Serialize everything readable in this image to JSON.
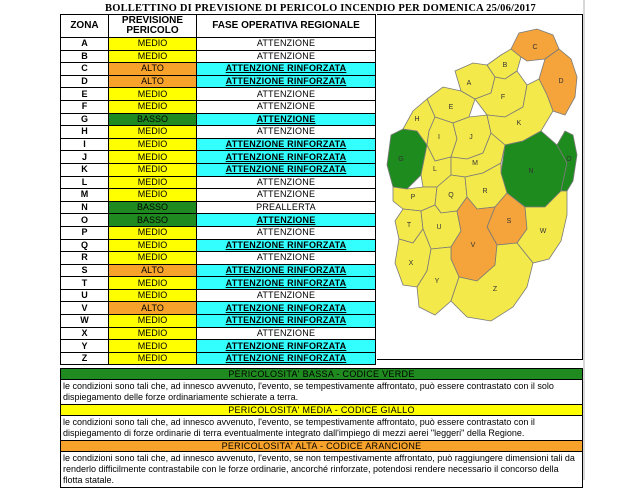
{
  "title": "BOLLETTINO DI PREVISIONE DI PERICOLO INCENDIO PER DOMENICA 25/06/2017",
  "colors": {
    "green": "#1f8a1f",
    "yellow": "#ffff00",
    "orange": "#f7a22a",
    "cyan": "#33ffff",
    "white": "#ffffff",
    "map_yellow": "#f4e94a",
    "map_orange": "#f4a43a",
    "map_green": "#1e8b1e"
  },
  "table": {
    "headers": {
      "zona": "ZONA",
      "previsione": "PREVISIONE PERICOLO",
      "fase": "FASE OPERATIVA REGIONALE"
    },
    "rows": [
      {
        "zona": "A",
        "prev": "MEDIO",
        "fase": "ATTENZIONE"
      },
      {
        "zona": "B",
        "prev": "MEDIO",
        "fase": "ATTENZIONE"
      },
      {
        "zona": "C",
        "prev": "ALTO",
        "fase": "ATTENZIONE RINFORZATA"
      },
      {
        "zona": "D",
        "prev": "ALTO",
        "fase": "ATTENZIONE RINFORZATA"
      },
      {
        "zona": "E",
        "prev": "MEDIO",
        "fase": "ATTENZIONE"
      },
      {
        "zona": "F",
        "prev": "MEDIO",
        "fase": "ATTENZIONE"
      },
      {
        "zona": "G",
        "prev": "BASSO",
        "fase": "ATTENZIONE"
      },
      {
        "zona": "H",
        "prev": "MEDIO",
        "fase": "ATTENZIONE"
      },
      {
        "zona": "I",
        "prev": "MEDIO",
        "fase": "ATTENZIONE RINFORZATA"
      },
      {
        "zona": "J",
        "prev": "MEDIO",
        "fase": "ATTENZIONE RINFORZATA"
      },
      {
        "zona": "K",
        "prev": "MEDIO",
        "fase": "ATTENZIONE RINFORZATA"
      },
      {
        "zona": "L",
        "prev": "MEDIO",
        "fase": "ATTENZIONE"
      },
      {
        "zona": "M",
        "prev": "MEDIO",
        "fase": "ATTENZIONE"
      },
      {
        "zona": "N",
        "prev": "BASSO",
        "fase": "PREALLERTA"
      },
      {
        "zona": "O",
        "prev": "BASSO",
        "fase": "ATTENZIONE"
      },
      {
        "zona": "P",
        "prev": "MEDIO",
        "fase": "ATTENZIONE"
      },
      {
        "zona": "Q",
        "prev": "MEDIO",
        "fase": "ATTENZIONE RINFORZATA"
      },
      {
        "zona": "R",
        "prev": "MEDIO",
        "fase": "ATTENZIONE"
      },
      {
        "zona": "S",
        "prev": "ALTO",
        "fase": "ATTENZIONE RINFORZATA"
      },
      {
        "zona": "T",
        "prev": "MEDIO",
        "fase": "ATTENZIONE RINFORZATA"
      },
      {
        "zona": "U",
        "prev": "MEDIO",
        "fase": "ATTENZIONE"
      },
      {
        "zona": "V",
        "prev": "ALTO",
        "fase": "ATTENZIONE RINFORZATA"
      },
      {
        "zona": "W",
        "prev": "MEDIO",
        "fase": "ATTENZIONE RINFORZATA"
      },
      {
        "zona": "X",
        "prev": "MEDIO",
        "fase": "ATTENZIONE"
      },
      {
        "zona": "Y",
        "prev": "MEDIO",
        "fase": "ATTENZIONE RINFORZATA"
      },
      {
        "zona": "Z",
        "prev": "MEDIO",
        "fase": "ATTENZIONE RINFORZATA"
      }
    ]
  },
  "map": {
    "zones": [
      {
        "label": "A",
        "level": "MEDIO"
      },
      {
        "label": "B",
        "level": "MEDIO"
      },
      {
        "label": "C",
        "level": "ALTO"
      },
      {
        "label": "D",
        "level": "ALTO"
      },
      {
        "label": "E",
        "level": "MEDIO"
      },
      {
        "label": "F",
        "level": "MEDIO"
      },
      {
        "label": "G",
        "level": "BASSO"
      },
      {
        "label": "H",
        "level": "MEDIO"
      },
      {
        "label": "I",
        "level": "MEDIO"
      },
      {
        "label": "J",
        "level": "MEDIO"
      },
      {
        "label": "K",
        "level": "MEDIO"
      },
      {
        "label": "L",
        "level": "MEDIO"
      },
      {
        "label": "M",
        "level": "MEDIO"
      },
      {
        "label": "N",
        "level": "BASSO"
      },
      {
        "label": "O",
        "level": "BASSO"
      },
      {
        "label": "P",
        "level": "MEDIO"
      },
      {
        "label": "Q",
        "level": "MEDIO"
      },
      {
        "label": "R",
        "level": "MEDIO"
      },
      {
        "label": "S",
        "level": "ALTO"
      },
      {
        "label": "T",
        "level": "MEDIO"
      },
      {
        "label": "U",
        "level": "MEDIO"
      },
      {
        "label": "V",
        "level": "ALTO"
      },
      {
        "label": "W",
        "level": "MEDIO"
      },
      {
        "label": "X",
        "level": "MEDIO"
      },
      {
        "label": "Y",
        "level": "MEDIO"
      },
      {
        "label": "Z",
        "level": "MEDIO"
      }
    ]
  },
  "legend": {
    "basso": {
      "head": "PERICOLOSITA' BASSA - CODICE VERDE",
      "text": "le condizioni sono tali che, ad innesco avvenuto, l'evento, se tempestivamente affrontato, può essere contrastato con il solo dispiegamento delle forze ordinariamente schierate a terra."
    },
    "medio": {
      "head": "PERICOLOSITA' MEDIA - CODICE GIALLO",
      "text": "le condizioni sono tali che, ad innesco avvenuto, l'evento, se tempestivamente affrontato, può essere contrastato con il dispiegamento di forze ordinarie di terra eventualmente integrato dall'impiego di mezzi aerei \"leggeri\" della Regione."
    },
    "alto": {
      "head": "PERICOLOSITA' ALTA - CODICE ARANCIONE",
      "text": "le condizioni sono tali che, ad innesco avvenuto, l'evento, se non tempestivamente affrontato, può raggiungere dimensioni tali da renderlo difficilmente contrastabile con le forze ordinarie, ancorché rinforzate, potendosi rendere necessario il concorso della flotta statale."
    }
  }
}
